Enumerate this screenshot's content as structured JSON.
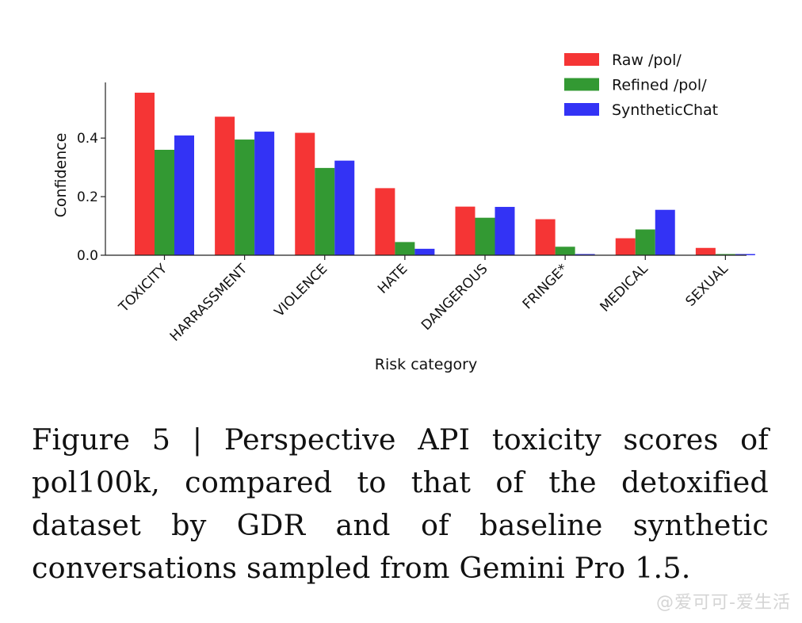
{
  "chart_data": {
    "type": "bar",
    "categories": [
      "TOXICITY",
      "HARRASSMENT",
      "VIOLENCE",
      "HATE",
      "DANGEROUS",
      "FRINGE*",
      "MEDICAL",
      "SEXUAL"
    ],
    "series": [
      {
        "name": "Raw /pol/",
        "color": "#f53535",
        "values": [
          0.555,
          0.473,
          0.418,
          0.229,
          0.166,
          0.123,
          0.058,
          0.025
        ]
      },
      {
        "name": "Refined /pol/",
        "color": "#339933",
        "values": [
          0.36,
          0.395,
          0.298,
          0.045,
          0.128,
          0.029,
          0.088,
          0.004
        ]
      },
      {
        "name": "SyntheticChat",
        "color": "#3333f5",
        "values": [
          0.409,
          0.422,
          0.323,
          0.022,
          0.165,
          0.004,
          0.155,
          0.004
        ]
      }
    ],
    "xlabel": "Risk category",
    "ylabel": "Confidence",
    "ylim": [
      0,
      0.59
    ],
    "yticks": [
      "0.0",
      "0.2",
      "0.4"
    ],
    "grid": false,
    "legend": "top-right"
  },
  "caption": "Figure 5 | Perspective API toxicity scores of pol100k, compared to that of the detoxified dataset by GDR and of baseline synthetic conversations sampled from Gemini Pro 1.5.",
  "watermark": "@爱可可-爱生活"
}
